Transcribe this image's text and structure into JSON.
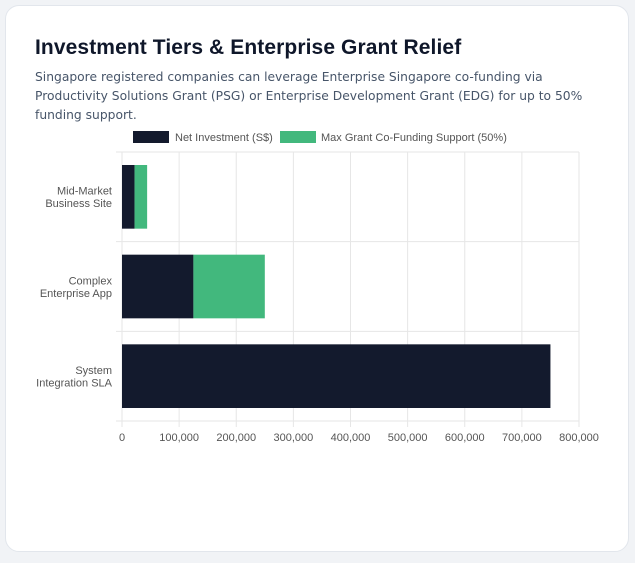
{
  "header": {
    "title": "Investment Tiers & Enterprise Grant Relief",
    "subtitle": "Singapore registered companies can leverage Enterprise Singapore co-funding via Productivity Solutions Grant (PSG) or Enterprise Development Grant (EDG) for up to 50% funding support."
  },
  "colors": {
    "net": "#131a2d",
    "grant": "#42b87d",
    "grid": "#e6e6e6"
  },
  "chart_data": {
    "type": "bar",
    "orientation": "horizontal",
    "stacked": true,
    "categories": [
      [
        "Mid-Market",
        "Business Site"
      ],
      [
        "Complex",
        "Enterprise App"
      ],
      [
        "System",
        "Integration SLA"
      ]
    ],
    "series": [
      {
        "name": "Net Investment (S$)",
        "values": [
          22000,
          125000,
          750000
        ]
      },
      {
        "name": "Max Grant Co-Funding Support (50%)",
        "values": [
          22000,
          125000,
          0
        ]
      }
    ],
    "xlim": [
      0,
      800000
    ],
    "xticks": [
      0,
      100000,
      200000,
      300000,
      400000,
      500000,
      600000,
      700000,
      800000
    ],
    "xtick_labels": [
      "0",
      "100,000",
      "200,000",
      "300,000",
      "400,000",
      "500,000",
      "600,000",
      "700,000",
      "800,000"
    ],
    "legend_position": "top",
    "grid": true
  }
}
